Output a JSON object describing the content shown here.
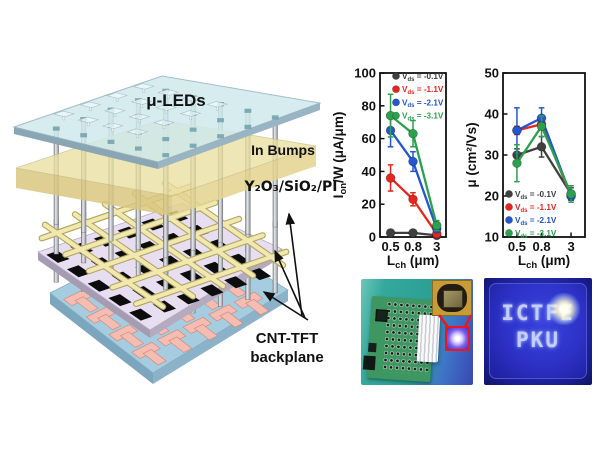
{
  "figure_labels": {
    "uleds": "μ-LEDs",
    "in_bumps": "In Bumps",
    "dielectric": "Y₂O₃/SiO₂/PI",
    "backplane_l1": "CNT-TFT",
    "backplane_l2": "backplane"
  },
  "photos": {
    "display_lines": [
      "ICTFE",
      "PKU"
    ]
  },
  "colors": {
    "series_gray": "#3f3f3f",
    "series_red": "#e8251d",
    "series_blue": "#2356d0",
    "series_green": "#2ba14d",
    "highlight_red": "#ee1616"
  },
  "chart_data": [
    {
      "type": "line",
      "name": "on_current_vs_channel_length",
      "xlabel": {
        "pre": "L",
        "sub": "ch",
        "post": " (μm)"
      },
      "ylabel": {
        "pre": "I",
        "sub": "on",
        "post": "/W (μA/μm)"
      },
      "categories": [
        "0.5",
        "0.8",
        "3"
      ],
      "ylim": [
        0,
        100
      ],
      "yticks": [
        0,
        20,
        40,
        60,
        80,
        100
      ],
      "legend_pos": "top-right",
      "legend_var": {
        "pre": "V",
        "sub": "ds"
      },
      "series": [
        {
          "label_value": "-0.1V",
          "color": "#3f3f3f",
          "values": [
            2.5,
            2.5,
            1
          ],
          "errors": [
            1,
            1,
            0.5
          ]
        },
        {
          "label_value": "-1.1V",
          "color": "#e8251d",
          "values": [
            36,
            23,
            2
          ],
          "errors": [
            8,
            4,
            1
          ]
        },
        {
          "label_value": "-2.1V",
          "color": "#2356d0",
          "values": [
            65,
            46,
            5
          ],
          "errors": [
            10,
            6,
            2
          ]
        },
        {
          "label_value": "-3.1V",
          "color": "#2ba14d",
          "values": [
            74,
            63,
            7
          ],
          "errors": [
            13,
            8,
            3
          ]
        }
      ]
    },
    {
      "type": "line",
      "name": "mobility_vs_channel_length",
      "xlabel": {
        "pre": "L",
        "sub": "ch",
        "post": " (μm)"
      },
      "ylabel": {
        "pre": "μ (cm²/Vs)",
        "sub": "",
        "post": ""
      },
      "categories": [
        "0.5",
        "0.8",
        "3"
      ],
      "ylim": [
        10,
        50
      ],
      "yticks": [
        10,
        20,
        30,
        40,
        50
      ],
      "legend_pos": "bottom-left",
      "legend_var": {
        "pre": "V",
        "sub": "ds"
      },
      "series": [
        {
          "label_value": "-0.1V",
          "color": "#3f3f3f",
          "values": [
            30,
            32,
            20.5
          ],
          "errors": [
            1.5,
            2.5,
            1.5
          ]
        },
        {
          "label_value": "-1.1V",
          "color": "#e8251d",
          "values": [
            36,
            37.5,
            20
          ],
          "errors": [
            1,
            1,
            1
          ]
        },
        {
          "label_value": "-2.1V",
          "color": "#2356d0",
          "values": [
            36,
            39,
            20
          ],
          "errors": [
            5.5,
            2.5,
            1
          ]
        },
        {
          "label_value": "-3.1V",
          "color": "#2ba14d",
          "values": [
            28,
            37,
            20.5
          ],
          "errors": [
            4.5,
            2.5,
            2
          ]
        }
      ]
    }
  ]
}
